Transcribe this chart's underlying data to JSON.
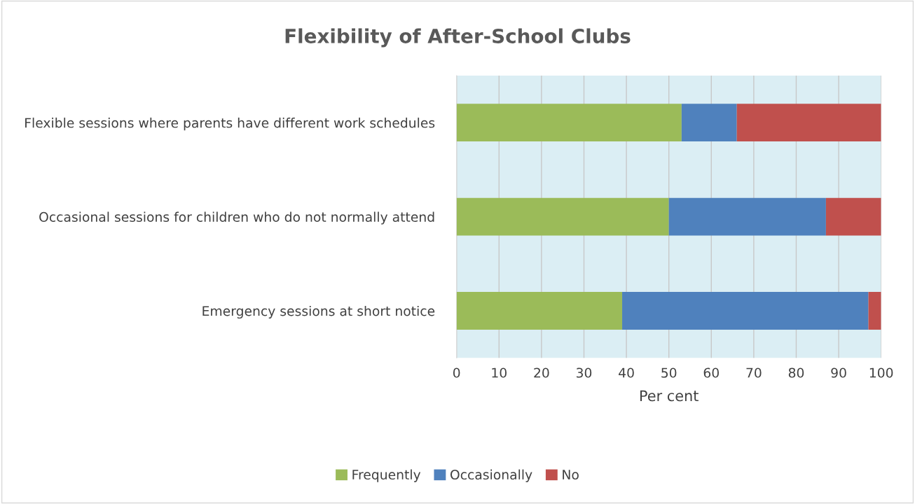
{
  "chart_data": {
    "type": "bar",
    "orientation": "horizontal",
    "stacked": true,
    "title": "Flexibility of After-School Clubs",
    "xlabel": "Per cent",
    "categories": [
      "Flexible sessions where parents have different work schedules",
      "Occasional sessions for children who do not normally attend",
      "Emergency sessions at short notice"
    ],
    "series": [
      {
        "name": "Frequently",
        "color": "#9bbb59",
        "values": [
          53,
          50,
          39
        ]
      },
      {
        "name": "Occasionally",
        "color": "#4f81bd",
        "values": [
          13,
          37,
          58
        ]
      },
      {
        "name": "No",
        "color": "#c0504d",
        "values": [
          34,
          13,
          3
        ]
      }
    ],
    "xlim": [
      0,
      100
    ],
    "xticks": [
      0,
      10,
      20,
      30,
      40,
      50,
      60,
      70,
      80,
      90,
      100
    ],
    "grid": "x",
    "legend": "bottom"
  }
}
